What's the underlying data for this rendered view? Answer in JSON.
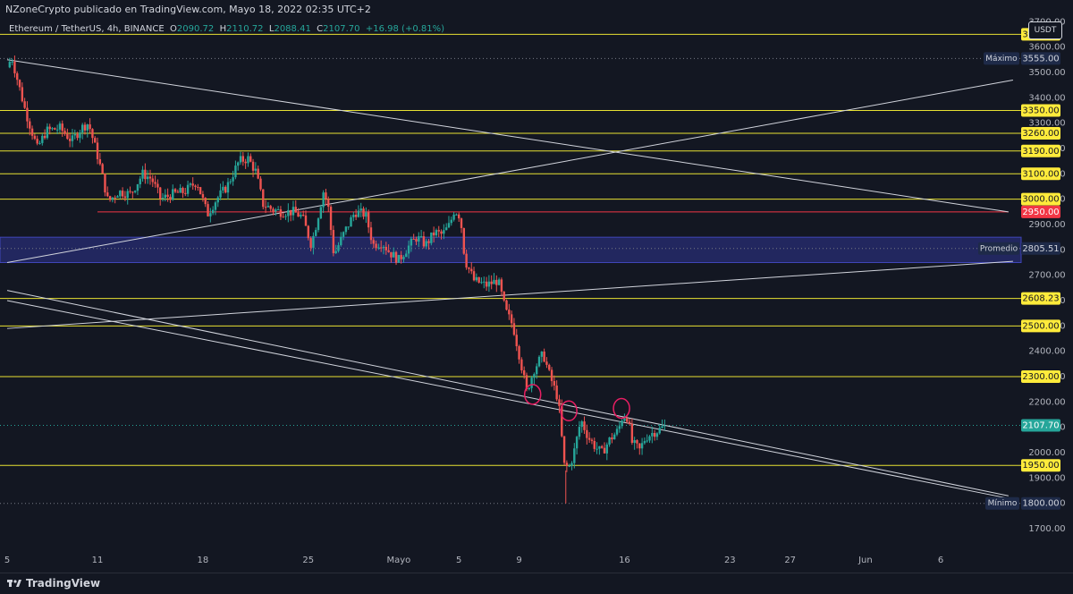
{
  "header": {
    "publisher": "NZoneCrypto publicado en TradingView.com, Mayo 18, 2022 02:35 UTC+2"
  },
  "legend": {
    "symbol": "Ethereum / TetherUS, 4h, BINANCE",
    "open_label": "O",
    "open": "2090.72",
    "high_label": "H",
    "high": "2110.72",
    "low_label": "L",
    "low": "2088.41",
    "close_label": "C",
    "close": "2107.70",
    "change": "+16.98 (+0.81%)"
  },
  "currency": "USDT",
  "footer": {
    "brand": "TradingView"
  },
  "colors": {
    "background": "#131722",
    "up": "#26a69a",
    "down": "#ef5350",
    "level_line": "#e8e233",
    "level_label_bg": "#ffeb3b",
    "red_level": "#f23645",
    "zone": "#2f3592",
    "trend": "#d1d4dc",
    "axis_text": "#b2b5be",
    "marker": "#e91e63"
  },
  "chart_data": {
    "type": "candlestick",
    "title": "",
    "y_axis": {
      "ylim": [
        1605,
        3708
      ],
      "ticks": [
        1700,
        1800,
        1900,
        2000,
        2100,
        2200,
        2300,
        2400,
        2500,
        2600,
        2700,
        2800,
        2900,
        3000,
        3100,
        3200,
        3300,
        3400,
        3500,
        3600,
        3700
      ],
      "tick_labels": [
        "1700.00",
        "1800.00",
        "1900.00",
        "2000.00",
        "2100.00",
        "2200.00",
        "2300.00",
        "2400.00",
        "2500.00",
        "2600.00",
        "2700.00",
        "2800.00",
        "2900.00",
        "3000.00",
        "3100.00",
        "3200.00",
        "3300.00",
        "3400.00",
        "3500.00",
        "3600.00",
        "3700.00"
      ]
    },
    "x_axis": {
      "day_range": [
        -0.1,
        43.7
      ],
      "ticks": [
        {
          "day": 0,
          "label": "5"
        },
        {
          "day": 6,
          "label": "11"
        },
        {
          "day": 13,
          "label": "18"
        },
        {
          "day": 20,
          "label": "25"
        },
        {
          "day": 26,
          "label": "Mayo"
        },
        {
          "day": 30,
          "label": "5"
        },
        {
          "day": 34,
          "label": "9"
        },
        {
          "day": 41,
          "label": "16"
        },
        {
          "day": 48,
          "label": "23"
        },
        {
          "day": 52,
          "label": "27"
        },
        {
          "day": 57,
          "label": "Jun"
        },
        {
          "day": 62,
          "label": "6"
        }
      ],
      "note": "x values are days from April 5, 2022"
    },
    "horizontal_levels": [
      {
        "value": 3650,
        "label": "3650.00"
      },
      {
        "value": 3350,
        "label": "3350.00"
      },
      {
        "value": 3260,
        "label": "3260.00"
      },
      {
        "value": 3190,
        "label": "3190.00"
      },
      {
        "value": 3100,
        "label": "3100.00"
      },
      {
        "value": 3000,
        "label": "3000.00"
      },
      {
        "value": 2608.23,
        "label": "2608.23"
      },
      {
        "value": 2500,
        "label": "2500.00"
      },
      {
        "value": 2300,
        "label": "2300.00"
      },
      {
        "value": 1950,
        "label": "1950.00"
      }
    ],
    "red_level": {
      "value": 2950,
      "label": "2950.00"
    },
    "max_marker": {
      "value": 3555,
      "label": "3555.00",
      "title": "Máximo"
    },
    "min_marker": {
      "value": 1800,
      "label": "1800.00",
      "title": "Mínimo"
    },
    "average_marker": {
      "value": 2805.51,
      "label": "2805.51",
      "title": "Promedio"
    },
    "last_price": {
      "value": 2107.7,
      "label": "2107.70"
    },
    "zone": {
      "from": 2750,
      "to": 2850
    },
    "trend_lines": [
      {
        "x1": 0.0,
        "y1": 3550,
        "x2": 66.5,
        "y2": 2950
      },
      {
        "x1": 0.0,
        "y1": 2750,
        "x2": 66.8,
        "y2": 3470
      },
      {
        "x1": 0.0,
        "y1": 2490,
        "x2": 66.8,
        "y2": 2755
      },
      {
        "x1": 0.0,
        "y1": 2640,
        "x2": 66.5,
        "y2": 1830
      },
      {
        "x1": 0.0,
        "y1": 2600,
        "x2": 66.5,
        "y2": 1820
      }
    ],
    "support_segment": {
      "x1": 6.0,
      "x2": 66.5,
      "value": 2950
    },
    "circle_markers": [
      {
        "day": 34.9,
        "value": 2230
      },
      {
        "day": 37.3,
        "value": 2165
      },
      {
        "day": 40.8,
        "value": 2175
      }
    ],
    "price_path": [
      [
        0.0,
        3520
      ],
      [
        0.3,
        3560
      ],
      [
        1.2,
        3350
      ],
      [
        2.0,
        3200
      ],
      [
        2.6,
        3270
      ],
      [
        3.5,
        3280
      ],
      [
        4.3,
        3230
      ],
      [
        4.9,
        3280
      ],
      [
        5.4,
        3300
      ],
      [
        6.1,
        3150
      ],
      [
        6.7,
        2990
      ],
      [
        7.4,
        3030
      ],
      [
        8.2,
        3020
      ],
      [
        9.0,
        3100
      ],
      [
        9.6,
        3080
      ],
      [
        10.2,
        3000
      ],
      [
        11.0,
        3020
      ],
      [
        11.8,
        3030
      ],
      [
        12.6,
        3070
      ],
      [
        13.3,
        2940
      ],
      [
        13.9,
        3000
      ],
      [
        14.6,
        3050
      ],
      [
        15.4,
        3150
      ],
      [
        16.0,
        3160
      ],
      [
        16.5,
        3110
      ],
      [
        17.0,
        2980
      ],
      [
        17.6,
        2960
      ],
      [
        18.2,
        2950
      ],
      [
        19.0,
        2950
      ],
      [
        19.6,
        2930
      ],
      [
        20.2,
        2820
      ],
      [
        20.6,
        2920
      ],
      [
        21.0,
        3030
      ],
      [
        21.3,
        2980
      ],
      [
        21.7,
        2780
      ],
      [
        22.4,
        2870
      ],
      [
        23.1,
        2950
      ],
      [
        23.8,
        2940
      ],
      [
        24.3,
        2820
      ],
      [
        24.9,
        2830
      ],
      [
        25.4,
        2790
      ],
      [
        26.0,
        2760
      ],
      [
        26.6,
        2810
      ],
      [
        27.2,
        2850
      ],
      [
        27.8,
        2820
      ],
      [
        28.4,
        2870
      ],
      [
        28.9,
        2860
      ],
      [
        29.4,
        2900
      ],
      [
        29.7,
        2960
      ],
      [
        30.1,
        2930
      ],
      [
        30.4,
        2760
      ],
      [
        31.0,
        2680
      ],
      [
        31.8,
        2660
      ],
      [
        32.6,
        2680
      ],
      [
        33.1,
        2560
      ],
      [
        33.6,
        2500
      ],
      [
        34.1,
        2360
      ],
      [
        34.5,
        2240
      ],
      [
        35.0,
        2330
      ],
      [
        35.6,
        2390
      ],
      [
        36.0,
        2310
      ],
      [
        36.6,
        2210
      ],
      [
        37.0,
        1950
      ],
      [
        37.3,
        1940
      ],
      [
        37.6,
        1990
      ],
      [
        38.1,
        2130
      ],
      [
        38.6,
        2060
      ],
      [
        39.1,
        2020
      ],
      [
        39.5,
        2000
      ],
      [
        40.0,
        2050
      ],
      [
        40.6,
        2090
      ],
      [
        40.9,
        2150
      ],
      [
        41.2,
        2140
      ],
      [
        41.5,
        2040
      ],
      [
        42.0,
        2010
      ],
      [
        42.4,
        2060
      ],
      [
        42.9,
        2080
      ],
      [
        43.3,
        2090
      ],
      [
        43.7,
        2107.7
      ]
    ]
  }
}
